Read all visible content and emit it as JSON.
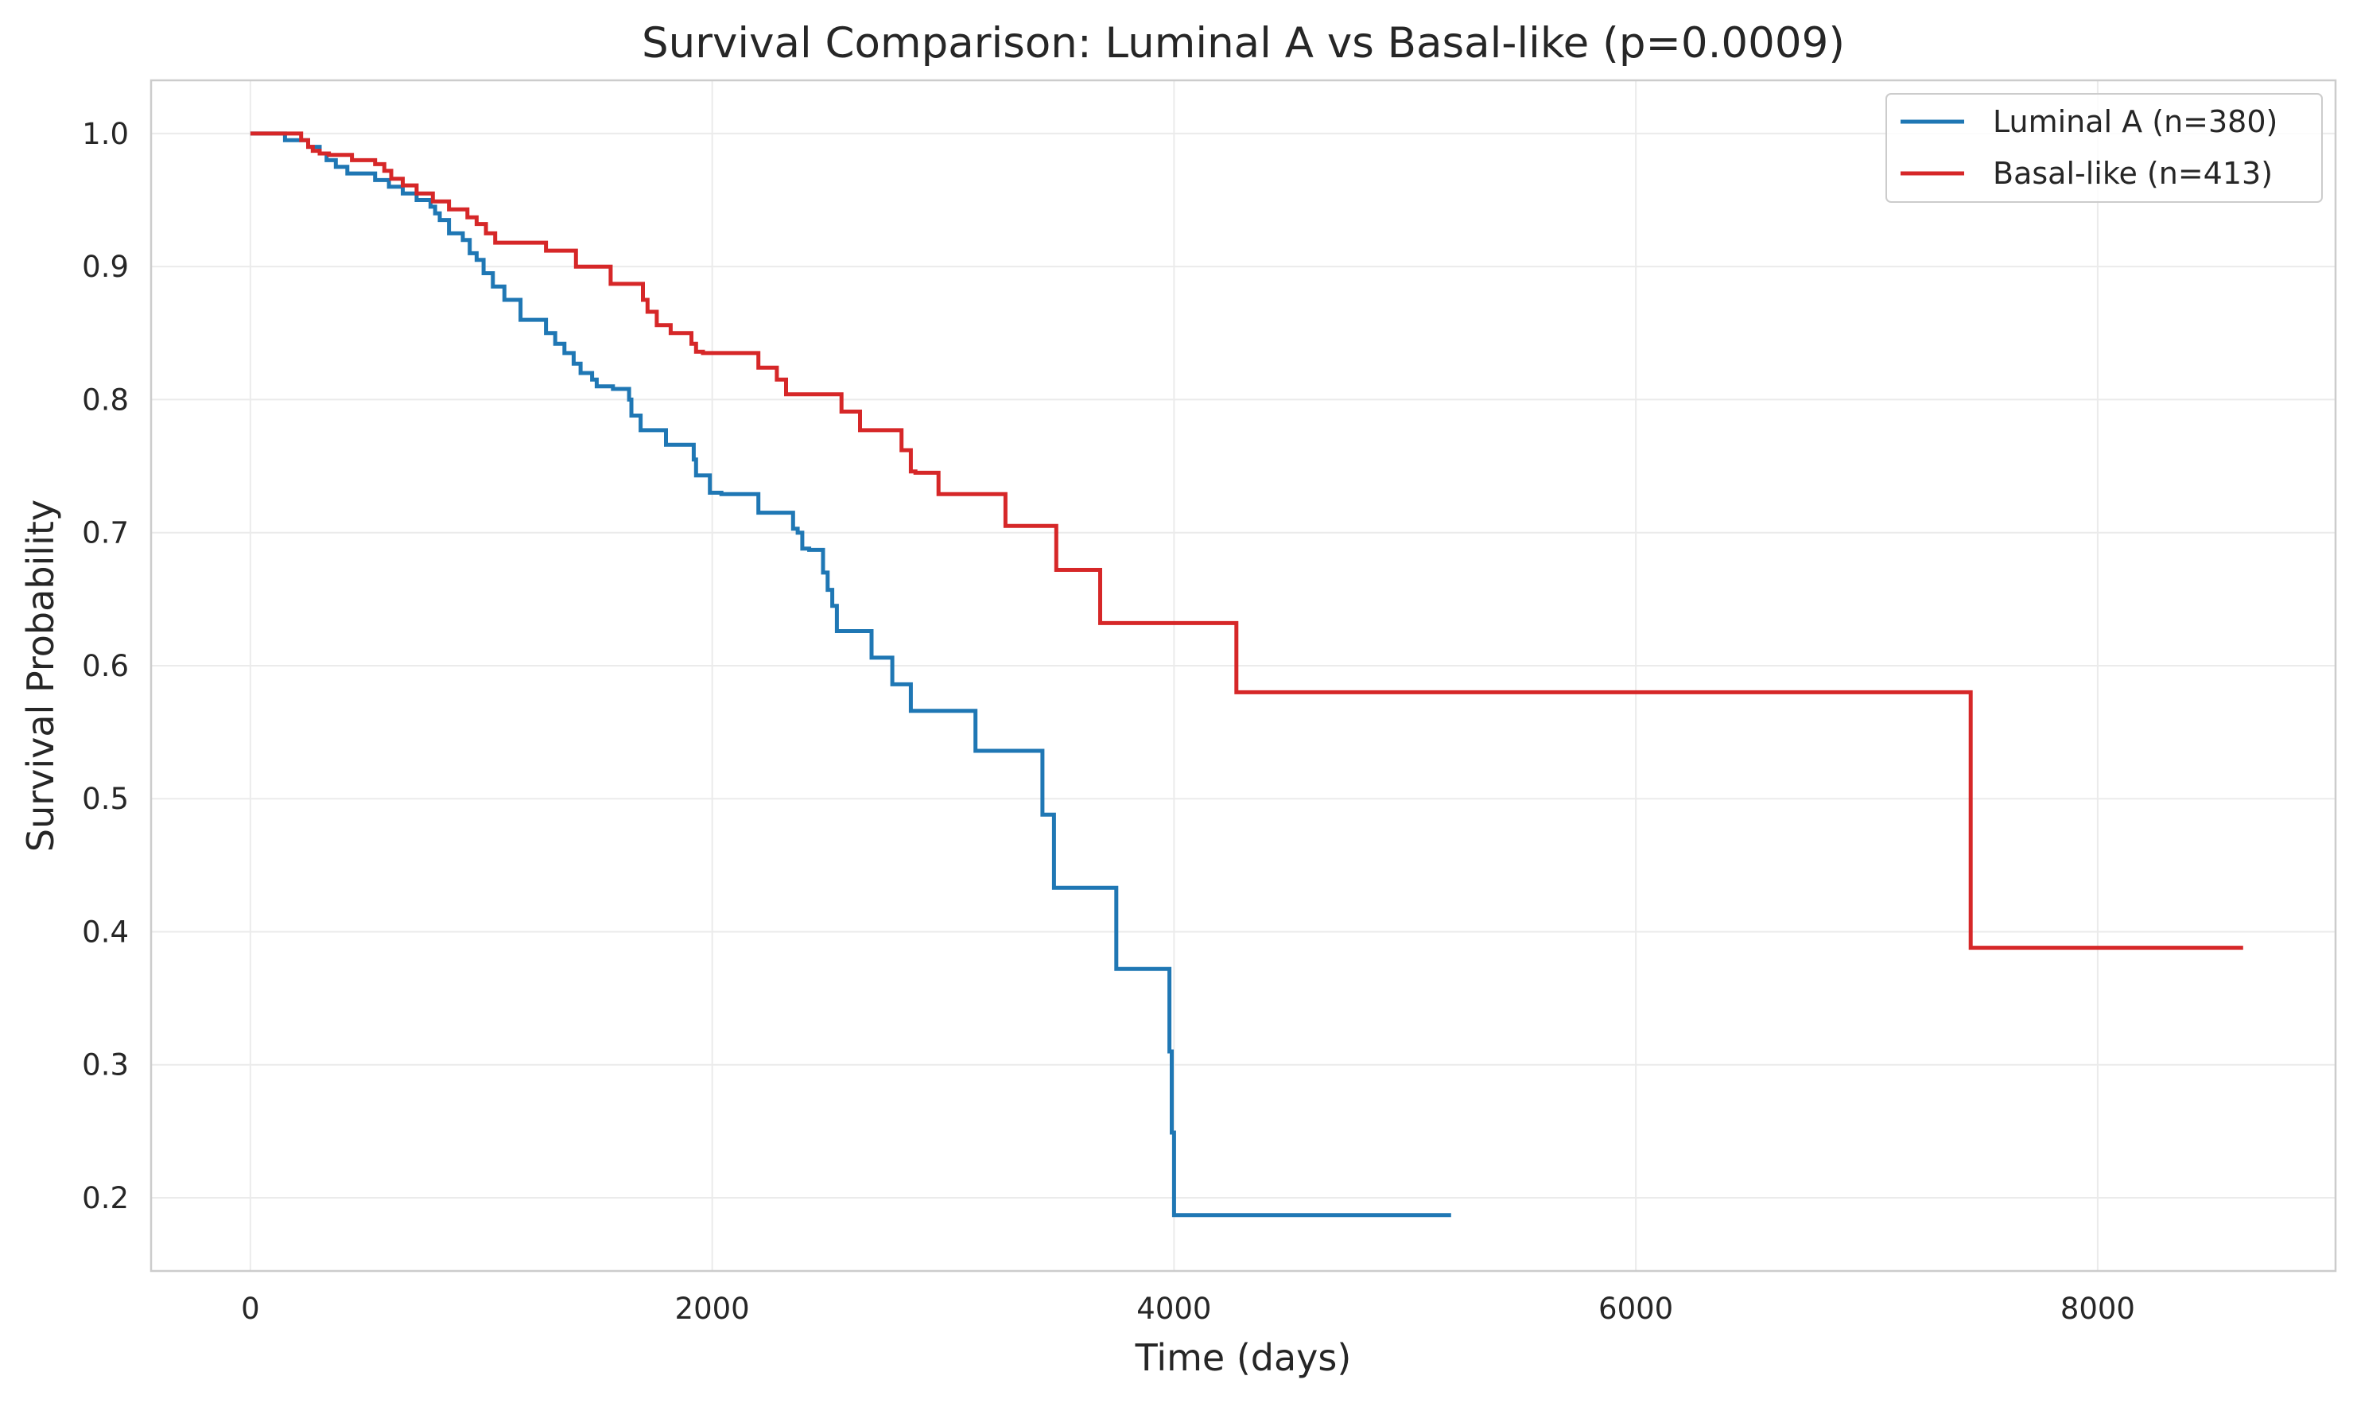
{
  "chart_data": {
    "type": "line",
    "step": true,
    "title": "Survival Comparison: Luminal A vs Basal-like (p=0.0009)",
    "xlabel": "Time (days)",
    "ylabel": "Survival Probability",
    "xlim": [
      -430,
      9030
    ],
    "ylim": [
      0.145,
      1.04
    ],
    "xticks": [
      0,
      2000,
      4000,
      6000,
      8000
    ],
    "xtick_labels": [
      "0",
      "2000",
      "4000",
      "6000",
      "8000"
    ],
    "yticks": [
      0.2,
      0.3,
      0.4,
      0.5,
      0.6,
      0.7,
      0.8,
      0.9,
      1.0
    ],
    "ytick_labels": [
      "0.2",
      "0.3",
      "0.4",
      "0.5",
      "0.6",
      "0.7",
      "0.8",
      "0.9",
      "1.0"
    ],
    "grid": true,
    "legend_position": "top-right",
    "series": [
      {
        "name": "Luminal A (n=380)",
        "color": "#1f77b4",
        "x": [
          0,
          150,
          250,
          300,
          330,
          370,
          420,
          540,
          600,
          660,
          720,
          780,
          800,
          820,
          860,
          920,
          950,
          980,
          1010,
          1050,
          1100,
          1170,
          1280,
          1320,
          1360,
          1400,
          1430,
          1480,
          1500,
          1570,
          1640,
          1650,
          1690,
          1800,
          1920,
          1930,
          1990,
          2040,
          2200,
          2350,
          2370,
          2390,
          2420,
          2480,
          2500,
          2520,
          2540,
          2580,
          2690,
          2780,
          2860,
          3140,
          3430,
          3480,
          3750,
          3980,
          3990,
          4000,
          4030,
          5200
        ],
        "y": [
          1.0,
          0.995,
          0.99,
          0.985,
          0.98,
          0.975,
          0.97,
          0.965,
          0.96,
          0.955,
          0.95,
          0.945,
          0.94,
          0.935,
          0.925,
          0.92,
          0.91,
          0.905,
          0.895,
          0.885,
          0.875,
          0.86,
          0.85,
          0.842,
          0.835,
          0.827,
          0.82,
          0.815,
          0.81,
          0.808,
          0.8,
          0.788,
          0.777,
          0.766,
          0.755,
          0.743,
          0.73,
          0.729,
          0.715,
          0.703,
          0.7,
          0.688,
          0.687,
          0.67,
          0.657,
          0.645,
          0.626,
          0.626,
          0.606,
          0.586,
          0.566,
          0.536,
          0.488,
          0.433,
          0.372,
          0.31,
          0.249,
          0.187,
          0.187,
          0.187
        ]
      },
      {
        "name": "Basal-like (n=413)",
        "color": "#d62728",
        "x": [
          0,
          220,
          250,
          270,
          300,
          340,
          440,
          540,
          580,
          610,
          660,
          720,
          790,
          860,
          940,
          980,
          1020,
          1060,
          1280,
          1410,
          1560,
          1700,
          1720,
          1760,
          1820,
          1910,
          1930,
          1960,
          2200,
          2280,
          2320,
          2560,
          2640,
          2820,
          2860,
          2880,
          2980,
          3270,
          3490,
          3680,
          4270,
          7450,
          8630
        ],
        "y": [
          1.0,
          0.995,
          0.99,
          0.987,
          0.985,
          0.984,
          0.98,
          0.977,
          0.972,
          0.966,
          0.961,
          0.955,
          0.949,
          0.943,
          0.937,
          0.932,
          0.925,
          0.918,
          0.912,
          0.9,
          0.887,
          0.875,
          0.866,
          0.856,
          0.85,
          0.842,
          0.836,
          0.835,
          0.824,
          0.815,
          0.804,
          0.791,
          0.777,
          0.762,
          0.746,
          0.745,
          0.729,
          0.705,
          0.672,
          0.632,
          0.58,
          0.388,
          0.388
        ]
      }
    ]
  }
}
